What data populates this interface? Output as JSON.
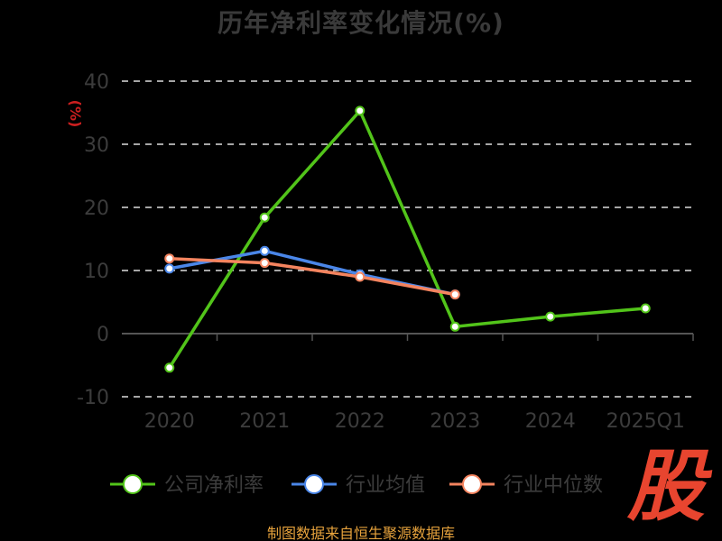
{
  "chart_data": {
    "type": "line",
    "title": "历年净利率变化情况(%)",
    "ylabel": "(%)",
    "xlabel": "",
    "categories": [
      "2020",
      "2021",
      "2022",
      "2023",
      "2024",
      "2025Q1"
    ],
    "ylim": [
      -10,
      40
    ],
    "yticks": [
      40,
      30,
      20,
      10,
      0,
      -10
    ],
    "grid": true,
    "legend_position": "bottom",
    "series": [
      {
        "name": "公司净利率",
        "color": "#52c41a",
        "values": [
          -5.4,
          18.4,
          35.3,
          1.1,
          2.7,
          4.0
        ]
      },
      {
        "name": "行业均值",
        "color": "#4a86e8",
        "values": [
          10.3,
          13.1,
          9.4,
          6.2,
          null,
          null
        ]
      },
      {
        "name": "行业中位数",
        "color": "#f4845f",
        "values": [
          11.9,
          11.2,
          9.0,
          6.2,
          null,
          null
        ]
      }
    ]
  },
  "footer": {
    "source": "制图数据来自恒生聚源数据库"
  },
  "logo": {
    "glyph": "股"
  }
}
